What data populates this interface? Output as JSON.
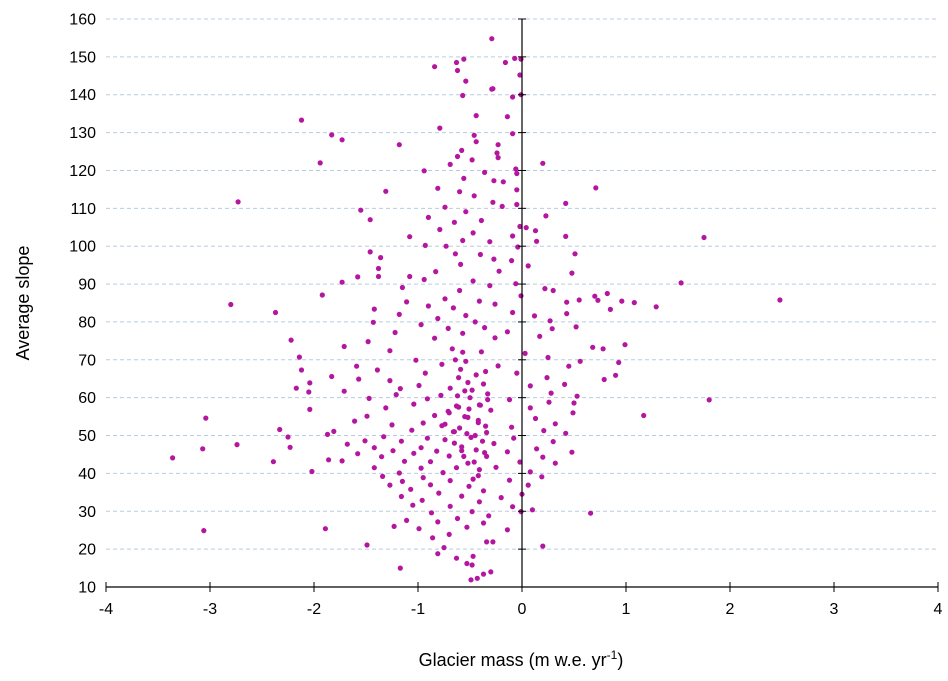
{
  "chart_data": {
    "type": "scatter",
    "title": "",
    "xlabel": "Glacier mass (m w.e. yr",
    "xlabel_superscript": "-1",
    "xlabel_suffix": ")",
    "ylabel": "Average slope",
    "xlim": [
      -4,
      4
    ],
    "ylim": [
      10,
      160
    ],
    "xticks": [
      -4,
      -3,
      -2,
      -1,
      0,
      1,
      2,
      3,
      4
    ],
    "yticks": [
      10,
      20,
      30,
      40,
      50,
      60,
      70,
      80,
      90,
      100,
      110,
      120,
      130,
      140,
      150,
      160
    ],
    "grid": "horizontal dashed",
    "legend": "none",
    "colors": {
      "marker": "#b5169f",
      "grid": "#b8cce4",
      "axis": "#000000"
    },
    "points": [
      [
        -0.29,
        154.8
      ],
      [
        -0.07,
        149.6
      ],
      [
        -0.56,
        149.4
      ],
      [
        -0.63,
        148.5
      ],
      [
        -0.01,
        149.4
      ],
      [
        -0.16,
        148.5
      ],
      [
        -0.84,
        147.4
      ],
      [
        -0.62,
        146.4
      ],
      [
        -0.02,
        145.2
      ],
      [
        -0.54,
        143.6
      ],
      [
        -0.28,
        141.6
      ],
      [
        -0.29,
        141.5
      ],
      [
        -0.01,
        140.0
      ],
      [
        -0.09,
        139.4
      ],
      [
        -0.57,
        139.8
      ],
      [
        -2.12,
        133.3
      ],
      [
        -0.14,
        134.2
      ],
      [
        -0.44,
        134.5
      ],
      [
        -0.79,
        131.2
      ],
      [
        -1.83,
        129.4
      ],
      [
        -0.09,
        129.7
      ],
      [
        -0.46,
        129.3
      ],
      [
        -0.44,
        127.6
      ],
      [
        -1.73,
        128.1
      ],
      [
        -1.18,
        126.8
      ],
      [
        -0.23,
        126.8
      ],
      [
        -0.58,
        125.3
      ],
      [
        -0.24,
        124.6
      ],
      [
        -0.48,
        122.8
      ],
      [
        -0.23,
        123.4
      ],
      [
        -0.62,
        123.7
      ],
      [
        -1.94,
        122.0
      ],
      [
        -0.69,
        121.6
      ],
      [
        0.2,
        121.9
      ],
      [
        -0.06,
        120.4
      ],
      [
        -0.94,
        119.9
      ],
      [
        -0.36,
        119.5
      ],
      [
        -0.05,
        119.2
      ],
      [
        -0.56,
        117.9
      ],
      [
        -0.27,
        117.3
      ],
      [
        -0.18,
        117.0
      ],
      [
        0.71,
        115.4
      ],
      [
        -0.81,
        115.3
      ],
      [
        -0.6,
        114.4
      ],
      [
        -0.05,
        114.9
      ],
      [
        -1.31,
        114.5
      ],
      [
        -0.46,
        113.3
      ],
      [
        -0.28,
        111.6
      ],
      [
        -2.73,
        111.7
      ],
      [
        0.42,
        111.3
      ],
      [
        -0.05,
        111.0
      ],
      [
        -0.19,
        110.5
      ],
      [
        -0.74,
        110.3
      ],
      [
        -1.55,
        109.5
      ],
      [
        -0.54,
        109.1
      ],
      [
        0.23,
        108.0
      ],
      [
        -0.9,
        107.6
      ],
      [
        -1.46,
        107.0
      ],
      [
        -0.65,
        106.3
      ],
      [
        -0.39,
        106.8
      ],
      [
        -0.02,
        105.2
      ],
      [
        0.04,
        104.9
      ],
      [
        -0.79,
        104.4
      ],
      [
        0.13,
        104.1
      ],
      [
        -0.47,
        103.5
      ],
      [
        -0.09,
        102.7
      ],
      [
        1.75,
        102.3
      ],
      [
        -1.08,
        102.5
      ],
      [
        0.42,
        102.6
      ],
      [
        -0.57,
        101.5
      ],
      [
        -0.31,
        101.2
      ],
      [
        0.14,
        101.3
      ],
      [
        -0.93,
        100.2
      ],
      [
        -0.73,
        100.0
      ],
      [
        -0.04,
        99.8
      ],
      [
        -1.46,
        98.5
      ],
      [
        -0.64,
        98.0
      ],
      [
        -0.4,
        97.8
      ],
      [
        0.51,
        98.0
      ],
      [
        -1.36,
        97.0
      ],
      [
        -0.27,
        96.6
      ],
      [
        -0.1,
        96.2
      ],
      [
        -0.59,
        95.2
      ],
      [
        0.06,
        94.8
      ],
      [
        -1.38,
        94.1
      ],
      [
        -0.83,
        93.3
      ],
      [
        -0.22,
        93.4
      ],
      [
        -1.08,
        92.0
      ],
      [
        -1.58,
        91.9
      ],
      [
        -1.38,
        92.0
      ],
      [
        0.48,
        92.9
      ],
      [
        -0.94,
        91.2
      ],
      [
        -0.47,
        90.8
      ],
      [
        1.53,
        90.3
      ],
      [
        -1.73,
        90.5
      ],
      [
        -0.06,
        90.1
      ],
      [
        -0.31,
        89.6
      ],
      [
        0.22,
        88.8
      ],
      [
        -1.15,
        89.1
      ],
      [
        -0.6,
        88.3
      ],
      [
        0.3,
        88.3
      ],
      [
        -1.92,
        87.1
      ],
      [
        -0.01,
        86.9
      ],
      [
        -0.74,
        86.1
      ],
      [
        0.7,
        86.8
      ],
      [
        -0.41,
        85.5
      ],
      [
        0.82,
        87.5
      ],
      [
        -1.11,
        85.3
      ],
      [
        0.55,
        85.8
      ],
      [
        0.73,
        85.7
      ],
      [
        1.08,
        85.1
      ],
      [
        0.43,
        85.2
      ],
      [
        2.48,
        85.8
      ],
      [
        -2.8,
        84.6
      ],
      [
        0.96,
        85.5
      ],
      [
        -0.9,
        84.2
      ],
      [
        -0.26,
        84.7
      ],
      [
        1.29,
        84.0
      ],
      [
        -0.66,
        83.7
      ],
      [
        -1.42,
        83.4
      ],
      [
        -2.37,
        82.5
      ],
      [
        0.85,
        83.3
      ],
      [
        -0.09,
        82.5
      ],
      [
        0.43,
        82.2
      ],
      [
        -1.18,
        82.0
      ],
      [
        -0.54,
        81.7
      ],
      [
        0.12,
        81.6
      ],
      [
        -0.81,
        80.9
      ],
      [
        -0.45,
        80.0
      ],
      [
        -1.43,
        79.9
      ],
      [
        0.27,
        80.3
      ],
      [
        -0.97,
        79.3
      ],
      [
        -0.36,
        78.5
      ],
      [
        0.29,
        78.2
      ],
      [
        -0.71,
        78.3
      ],
      [
        0.52,
        78.7
      ],
      [
        -1.22,
        77.2
      ],
      [
        -0.14,
        77.4
      ],
      [
        -0.57,
        77.0
      ],
      [
        0.17,
        76.2
      ],
      [
        -2.22,
        75.2
      ],
      [
        -0.84,
        75.7
      ],
      [
        -1.48,
        74.8
      ],
      [
        -0.26,
        75.8
      ],
      [
        0.99,
        74.0
      ],
      [
        -1.71,
        73.5
      ],
      [
        0.68,
        73.3
      ],
      [
        0.78,
        72.9
      ],
      [
        -0.67,
        72.9
      ],
      [
        -1.27,
        72.4
      ],
      [
        -0.39,
        72.1
      ],
      [
        0.03,
        71.7
      ],
      [
        -2.14,
        70.7
      ],
      [
        0.25,
        70.6
      ],
      [
        -1.02,
        69.9
      ],
      [
        -0.54,
        69.6
      ],
      [
        0.56,
        69.6
      ],
      [
        0.93,
        69.3
      ],
      [
        -1.59,
        68.3
      ],
      [
        -0.77,
        68.8
      ],
      [
        -0.23,
        68.4
      ],
      [
        0.45,
        68.3
      ],
      [
        -2.12,
        67.3
      ],
      [
        -1.39,
        67.3
      ],
      [
        -0.93,
        66.5
      ],
      [
        -0.35,
        66.9
      ],
      [
        -0.05,
        66.5
      ],
      [
        0.9,
        65.9
      ],
      [
        -1.83,
        65.6
      ],
      [
        -1.57,
        64.9
      ],
      [
        -0.61,
        65.3
      ],
      [
        0.24,
        65.3
      ],
      [
        -1.27,
        64.5
      ],
      [
        0.79,
        64.8
      ],
      [
        -2.04,
        63.9
      ],
      [
        -0.99,
        63.2
      ],
      [
        -0.37,
        63.6
      ],
      [
        0.08,
        63.1
      ],
      [
        0.41,
        63.5
      ],
      [
        -2.17,
        62.5
      ],
      [
        -1.71,
        61.7
      ],
      [
        -1.17,
        62.4
      ],
      [
        -0.55,
        61.8
      ],
      [
        0.28,
        61.2
      ],
      [
        -2.05,
        61.5
      ],
      [
        -1.21,
        60.8
      ],
      [
        -0.78,
        60.6
      ],
      [
        -0.33,
        61.0
      ],
      [
        0.53,
        60.4
      ],
      [
        1.8,
        59.4
      ],
      [
        -1.47,
        59.8
      ],
      [
        -0.91,
        59.7
      ],
      [
        -0.12,
        59.5
      ],
      [
        0.26,
        58.8
      ],
      [
        0.5,
        58.6
      ],
      [
        -1.04,
        58.3
      ],
      [
        -0.63,
        57.8
      ],
      [
        -0.41,
        58.1
      ],
      [
        0.08,
        57.3
      ],
      [
        -2.04,
        56.9
      ],
      [
        -1.31,
        57.3
      ],
      [
        -0.71,
        56.4
      ],
      [
        -0.3,
        56.7
      ],
      [
        0.49,
        56.0
      ],
      [
        1.17,
        55.3
      ],
      [
        -3.04,
        54.6
      ],
      [
        -1.49,
        55.1
      ],
      [
        -0.84,
        55.3
      ],
      [
        -0.52,
        54.8
      ],
      [
        0.13,
        54.5
      ],
      [
        -1.61,
        53.8
      ],
      [
        -0.95,
        53.3
      ],
      [
        -0.42,
        53.4
      ],
      [
        0.32,
        53.1
      ],
      [
        -1.25,
        52.8
      ],
      [
        -0.77,
        52.6
      ],
      [
        -0.1,
        52.2
      ],
      [
        -2.33,
        51.6
      ],
      [
        -1.81,
        51.1
      ],
      [
        -1.06,
        51.4
      ],
      [
        -0.65,
        51.0
      ],
      [
        0.21,
        51.3
      ],
      [
        -1.87,
        50.3
      ],
      [
        -0.34,
        50.8
      ],
      [
        0.42,
        50.6
      ],
      [
        -2.25,
        49.6
      ],
      [
        -1.33,
        49.7
      ],
      [
        -0.91,
        49.3
      ],
      [
        -0.49,
        49.5
      ],
      [
        -0.08,
        49.3
      ],
      [
        -1.51,
        48.6
      ],
      [
        -1.16,
        48.5
      ],
      [
        -0.74,
        48.9
      ],
      [
        0.3,
        48.4
      ],
      [
        -2.74,
        47.6
      ],
      [
        -1.68,
        47.7
      ],
      [
        -0.27,
        47.9
      ],
      [
        -1.42,
        46.8
      ],
      [
        -0.97,
        46.8
      ],
      [
        -0.58,
        47.0
      ],
      [
        0.14,
        46.5
      ],
      [
        -3.07,
        46.5
      ],
      [
        -2.23,
        46.9
      ],
      [
        -1.24,
        46.0
      ],
      [
        -0.82,
        45.9
      ],
      [
        -0.44,
        46.2
      ],
      [
        0.48,
        45.6
      ],
      [
        -1.58,
        45.2
      ],
      [
        -1.04,
        45.3
      ],
      [
        -0.14,
        45.7
      ],
      [
        -3.36,
        44.1
      ],
      [
        -1.86,
        43.6
      ],
      [
        -1.35,
        44.4
      ],
      [
        -0.7,
        44.6
      ],
      [
        -0.34,
        44.5
      ],
      [
        0.2,
        44.3
      ],
      [
        -2.39,
        43.1
      ],
      [
        -1.73,
        43.3
      ],
      [
        -1.13,
        43.2
      ],
      [
        -0.88,
        43.1
      ],
      [
        -0.52,
        42.7
      ],
      [
        -0.02,
        43.0
      ],
      [
        0.32,
        42.7
      ],
      [
        -2.02,
        40.5
      ],
      [
        -1.42,
        41.5
      ],
      [
        -0.97,
        41.4
      ],
      [
        -0.63,
        41.5
      ],
      [
        -0.25,
        41.6
      ],
      [
        -1.18,
        40.1
      ],
      [
        -0.76,
        40.2
      ],
      [
        0.08,
        40.4
      ],
      [
        -1.34,
        39.2
      ],
      [
        -0.95,
        38.9
      ],
      [
        -0.42,
        39.4
      ],
      [
        0.19,
        39.1
      ],
      [
        -1.15,
        37.9
      ],
      [
        -0.69,
        38.1
      ],
      [
        -0.12,
        38.2
      ],
      [
        -1.27,
        36.9
      ],
      [
        -0.88,
        37.0
      ],
      [
        -0.51,
        36.6
      ],
      [
        0.06,
        36.9
      ],
      [
        -1.07,
        35.8
      ],
      [
        -0.37,
        35.4
      ],
      [
        -0.8,
        34.8
      ],
      [
        0.0,
        34.5
      ],
      [
        -1.16,
        33.9
      ],
      [
        -0.58,
        34.0
      ],
      [
        -0.2,
        33.6
      ],
      [
        -0.96,
        32.9
      ],
      [
        -0.41,
        32.5
      ],
      [
        -1.05,
        31.6
      ],
      [
        -0.69,
        31.3
      ],
      [
        -0.09,
        31.2
      ],
      [
        0.1,
        30.4
      ],
      [
        -0.01,
        29.9
      ],
      [
        0.66,
        29.5
      ],
      [
        -0.87,
        29.6
      ],
      [
        -0.48,
        29.9
      ],
      [
        -0.32,
        28.8
      ],
      [
        -0.62,
        28.1
      ],
      [
        -1.11,
        27.6
      ],
      [
        -0.81,
        27.2
      ],
      [
        -0.37,
        26.9
      ],
      [
        -1.23,
        26.0
      ],
      [
        -0.99,
        25.4
      ],
      [
        -0.53,
        25.8
      ],
      [
        -3.06,
        24.9
      ],
      [
        -1.89,
        25.4
      ],
      [
        -0.14,
        25.1
      ],
      [
        -0.7,
        23.9
      ],
      [
        -0.86,
        23.0
      ],
      [
        -0.28,
        21.9
      ],
      [
        -1.49,
        21.1
      ],
      [
        -0.34,
        21.9
      ],
      [
        0.2,
        20.8
      ],
      [
        -0.75,
        20.4
      ],
      [
        -0.81,
        18.8
      ],
      [
        -0.47,
        18.1
      ],
      [
        -0.63,
        17.6
      ],
      [
        -0.53,
        16.2
      ],
      [
        -0.48,
        15.8
      ],
      [
        -1.17,
        15.0
      ],
      [
        -0.37,
        13.4
      ],
      [
        -0.3,
        14.0
      ],
      [
        -0.43,
        12.3
      ],
      [
        -0.49,
        11.9
      ],
      [
        -0.5,
        60.0
      ],
      [
        -0.55,
        55.0
      ],
      [
        -0.45,
        50.0
      ],
      [
        -0.6,
        52.0
      ],
      [
        -0.4,
        58.0
      ],
      [
        -0.65,
        48.0
      ],
      [
        -0.52,
        64.0
      ],
      [
        -0.58,
        46.0
      ],
      [
        -0.42,
        54.0
      ],
      [
        -0.48,
        62.0
      ],
      [
        -0.7,
        56.0
      ],
      [
        -0.35,
        52.5
      ],
      [
        -0.62,
        60.5
      ],
      [
        -0.44,
        66.0
      ],
      [
        -0.56,
        44.5
      ],
      [
        -0.66,
        51.0
      ],
      [
        -0.38,
        48.5
      ],
      [
        -0.51,
        57.0
      ],
      [
        -0.59,
        67.5
      ],
      [
        -0.46,
        43.0
      ],
      [
        -0.74,
        53.0
      ],
      [
        -0.33,
        59.5
      ],
      [
        -0.64,
        70.0
      ],
      [
        -0.41,
        41.0
      ],
      [
        -0.53,
        50.5
      ],
      [
        -0.69,
        62.5
      ],
      [
        -0.36,
        45.5
      ],
      [
        -0.57,
        72.0
      ],
      [
        -0.47,
        38.5
      ],
      [
        -0.61,
        57.5
      ]
    ]
  }
}
